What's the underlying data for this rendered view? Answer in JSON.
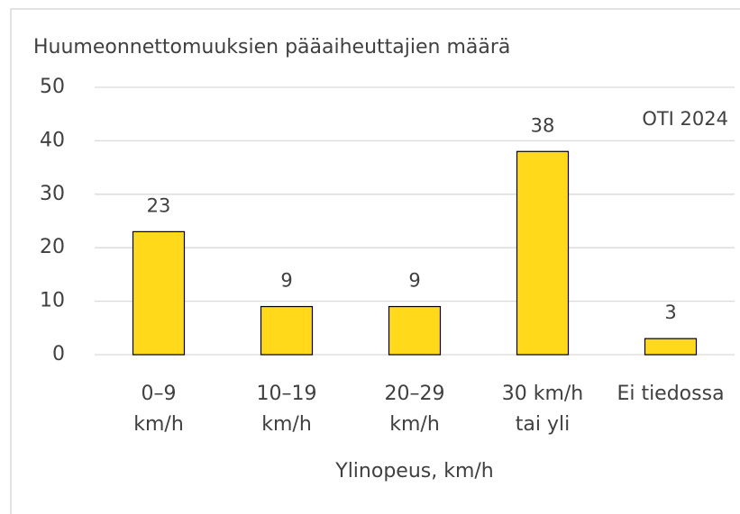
{
  "chart_data": {
    "type": "bar",
    "title": "Huumeonnettomuuksien pääaiheuttajien määrä",
    "annotation": "OTI 2024",
    "x_label": "Ylinopeus, km/h",
    "categories": [
      [
        "0–9",
        "km/h"
      ],
      [
        "10–19",
        "km/h"
      ],
      [
        "20–29",
        "km/h"
      ],
      [
        "30 km/h",
        "tai yli"
      ],
      [
        "Ei tiedossa"
      ]
    ],
    "values": [
      23,
      9,
      9,
      38,
      3
    ],
    "color": "#ffd91a",
    "ylim": [
      0,
      50
    ],
    "yticks": [
      0,
      10,
      20,
      30,
      40,
      50
    ],
    "grid": true
  }
}
